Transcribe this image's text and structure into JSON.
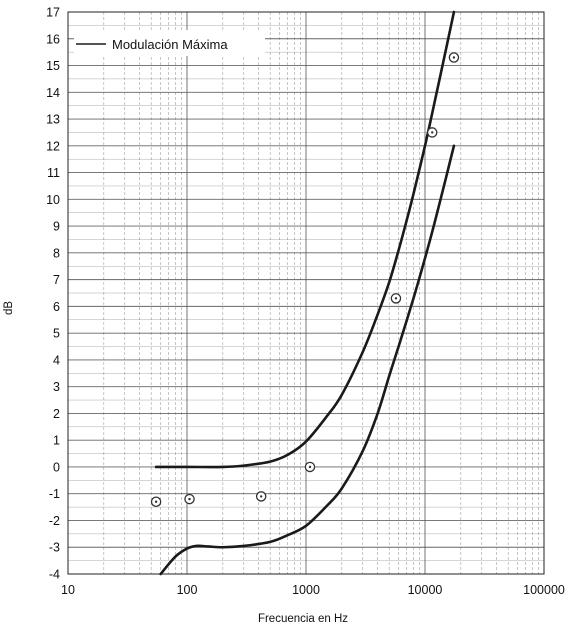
{
  "chart_data": {
    "type": "line",
    "title": "",
    "xlabel": "Frecuencia en Hz",
    "ylabel": "dB",
    "x_scale": "log",
    "xlim": [
      10,
      100000
    ],
    "ylim": [
      -4,
      17
    ],
    "x_ticks": [
      "10",
      "100",
      "1000",
      "10000",
      "100000"
    ],
    "y_ticks": [
      "-4",
      "-3",
      "-2",
      "-1",
      "0",
      "1",
      "2",
      "3",
      "4",
      "5",
      "6",
      "7",
      "8",
      "9",
      "10",
      "11",
      "12",
      "13",
      "14",
      "15",
      "16",
      "17"
    ],
    "grid": "on (major and minor, log x)",
    "legend": {
      "position": "top-left",
      "entries": [
        "Modulación Máxima"
      ]
    },
    "colors": {
      "curve": "#1a1a1a",
      "grid": "#555555",
      "marker": "#333333"
    },
    "series": [
      {
        "style": "line",
        "x": [
          55,
          100,
          200,
          300,
          500,
          700,
          1000,
          1500,
          2000,
          3000,
          4000,
          5000,
          6000,
          7000,
          8000,
          10000,
          12000,
          15000,
          17500
        ],
        "values": [
          0.0,
          0.0,
          0.0,
          0.05,
          0.2,
          0.45,
          0.95,
          1.9,
          2.7,
          4.3,
          5.7,
          6.9,
          8.1,
          9.2,
          10.2,
          12.0,
          13.6,
          15.6,
          17.0
        ]
      },
      {
        "style": "line",
        "x": [
          60,
          80,
          100,
          120,
          150,
          200,
          300,
          500,
          700,
          1000,
          1500,
          2000,
          3000,
          4000,
          5000,
          6000,
          8000,
          10000,
          12000,
          15000,
          17500
        ],
        "values": [
          -4.0,
          -3.35,
          -3.05,
          -2.95,
          -2.97,
          -3.0,
          -2.95,
          -2.8,
          -2.55,
          -2.2,
          -1.45,
          -0.8,
          0.6,
          2.0,
          3.4,
          4.5,
          6.3,
          7.8,
          9.1,
          10.8,
          12.0
        ]
      },
      {
        "style": "markers",
        "x": [
          55,
          105,
          420,
          1080,
          5700,
          11500,
          17500
        ],
        "values": [
          -1.3,
          -1.2,
          -1.1,
          0.0,
          6.3,
          12.5,
          15.3
        ]
      }
    ]
  }
}
